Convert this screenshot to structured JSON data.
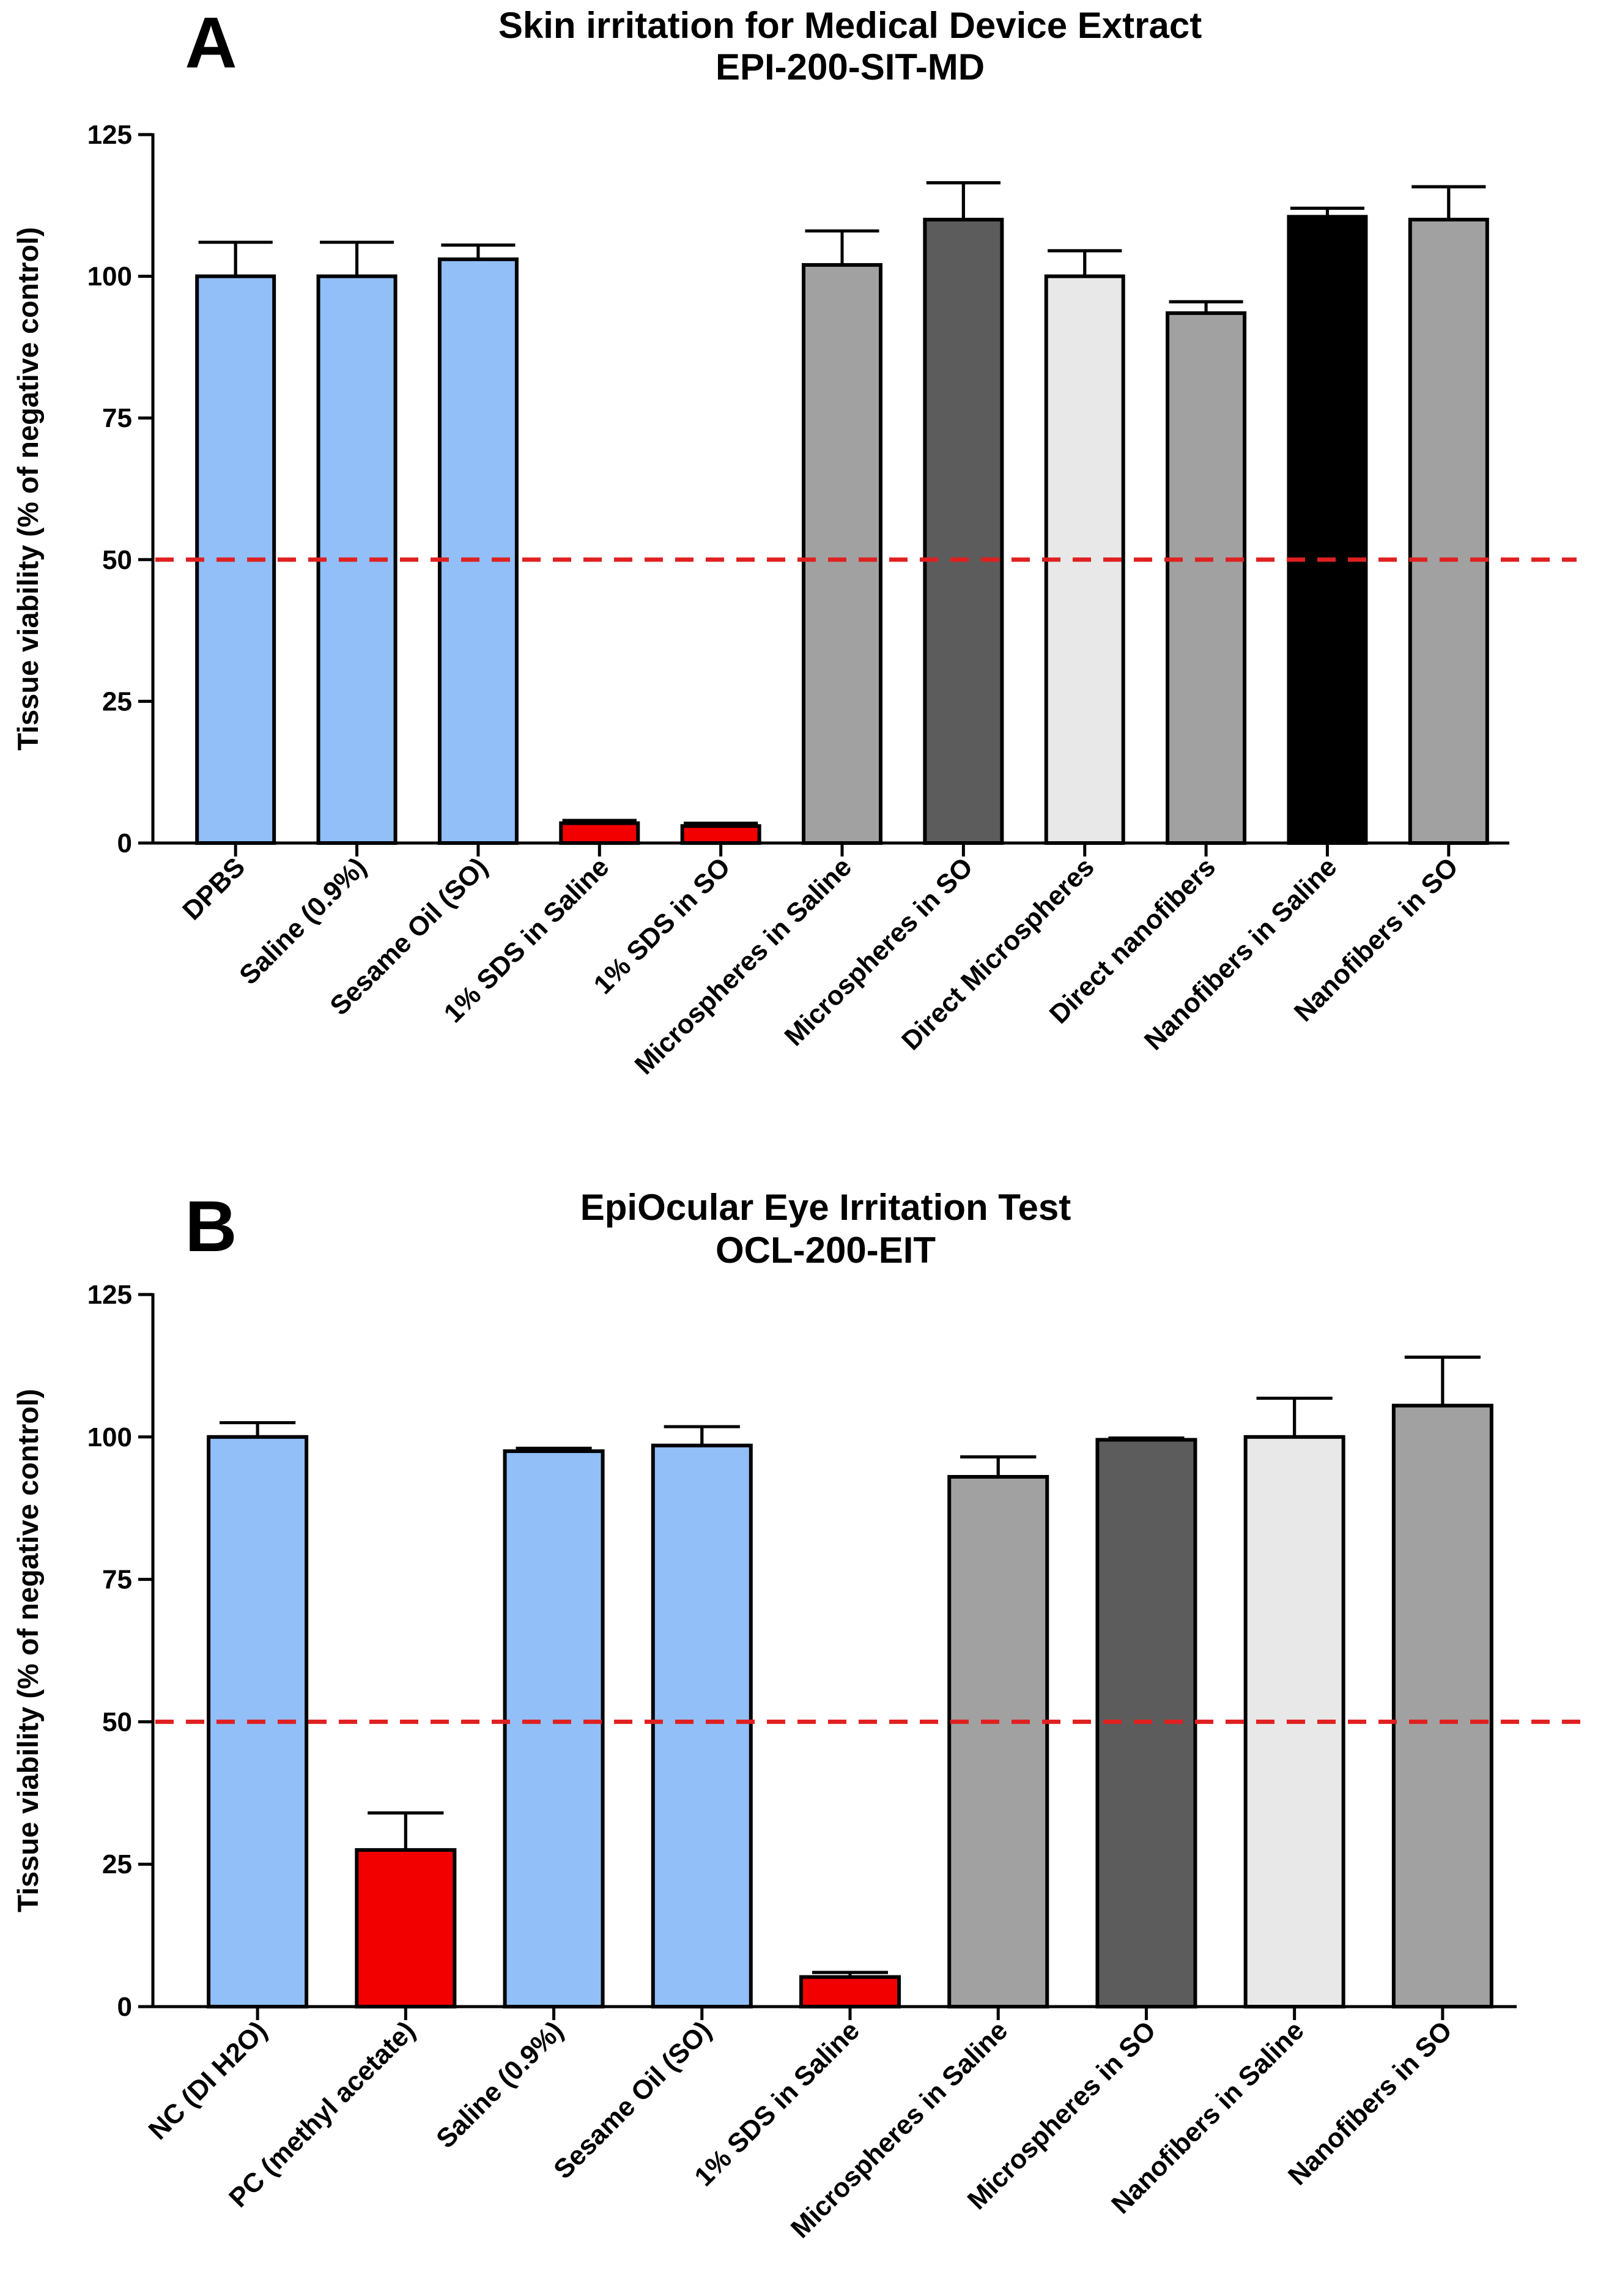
{
  "chart_data": [
    {
      "type": "bar",
      "panel": "A",
      "title": "Skin irritation for Medical Device Extract",
      "subtitle": "EPI-200-SIT-MD",
      "xlabel": "",
      "ylabel": "Tissue viability (% of negative control)",
      "ylim": [
        0,
        125
      ],
      "yticks": [
        0,
        25,
        50,
        75,
        100,
        125
      ],
      "threshold": {
        "value": 50,
        "color": "#e02020",
        "style": "dashed"
      },
      "categories": [
        "DPBS",
        "Saline (0.9%)",
        "Sesame Oil (SO)",
        "1% SDS in Saline",
        "1% SDS in SO",
        "Microspheres in Saline",
        "Microspheres in SO",
        "Direct Microspheres",
        "Direct nanofibers",
        "Nanofibers in Saline",
        "Nanofibers in SO"
      ],
      "values": [
        100,
        100,
        103,
        3.5,
        3,
        102,
        110,
        100,
        93.5,
        110.5,
        110
      ],
      "errors": [
        6,
        6,
        2.5,
        0.5,
        0.5,
        6,
        6.5,
        4.5,
        2,
        1.5,
        5.8
      ],
      "colors": [
        "#92bff7",
        "#92bff7",
        "#92bff7",
        "#f20000",
        "#f20000",
        "#a1a1a1",
        "#5c5c5c",
        "#e8e8e8",
        "#a1a1a1",
        "#000000",
        "#a1a1a1"
      ]
    },
    {
      "type": "bar",
      "panel": "B",
      "title": "EpiOcular Eye Irritation Test",
      "subtitle": "OCL-200-EIT",
      "xlabel": "",
      "ylabel": "Tissue viability (% of negative control)",
      "ylim": [
        0,
        125
      ],
      "yticks": [
        0,
        25,
        50,
        75,
        100,
        125
      ],
      "threshold": {
        "value": 50,
        "color": "#e02020",
        "style": "dashed"
      },
      "categories": [
        "NC (DI H2O)",
        "PC (methyl acetate)",
        "Saline (0.9%)",
        "Sesame Oil (SO)",
        "1% SDS in Saline",
        "Microspheres in Saline",
        "Microspheres in SO",
        "Nanofibers in Saline",
        "Nanofibers in SO"
      ],
      "values": [
        100,
        27.5,
        97.5,
        98.5,
        5.2,
        93,
        99.5,
        100,
        105.5
      ],
      "errors": [
        2.5,
        6.5,
        0.5,
        3.3,
        0.8,
        3.5,
        0.3,
        6.8,
        8.5
      ],
      "colors": [
        "#92bff7",
        "#f20000",
        "#92bff7",
        "#92bff7",
        "#f20000",
        "#a1a1a1",
        "#5c5c5c",
        "#e8e8e8",
        "#a1a1a1"
      ]
    }
  ]
}
